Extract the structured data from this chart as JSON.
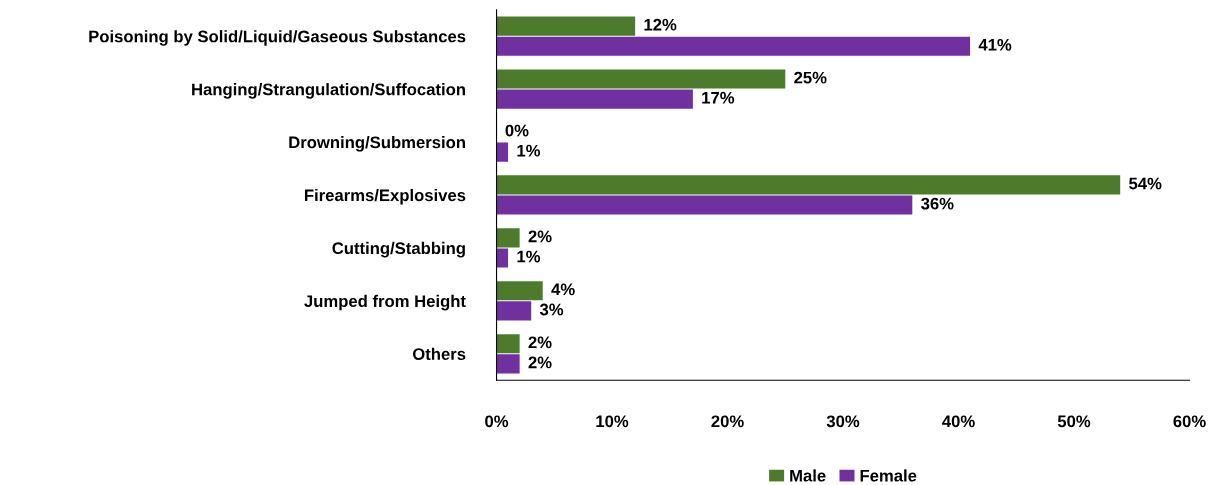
{
  "chart_data": {
    "type": "bar",
    "orientation": "horizontal",
    "categories": [
      "Poisoning by Solid/Liquid/Gaseous Substances",
      "Hanging/Strangulation/Suffocation",
      "Drowning/Submersion",
      "Firearms/Explosives",
      "Cutting/Stabbing",
      "Jumped from Height",
      "Others"
    ],
    "series": [
      {
        "name": "Male",
        "color": "#4e7a2c",
        "values": [
          12,
          25,
          0,
          54,
          2,
          4,
          2
        ],
        "value_labels": [
          "12%",
          "25%",
          "0%",
          "54%",
          "2%",
          "4%",
          "2%"
        ]
      },
      {
        "name": "Female",
        "color": "#7030a0",
        "values": [
          41,
          17,
          1,
          36,
          1,
          3,
          2
        ],
        "value_labels": [
          "41%",
          "17%",
          "1%",
          "36%",
          "1%",
          "3%",
          "2%"
        ]
      }
    ],
    "xlim": [
      0,
      60
    ],
    "xticks": [
      {
        "value": 0,
        "label": "0%"
      },
      {
        "value": 10,
        "label": "10%"
      },
      {
        "value": 20,
        "label": "20%"
      },
      {
        "value": 30,
        "label": "30%"
      },
      {
        "value": 40,
        "label": "40%"
      },
      {
        "value": 50,
        "label": "50%"
      },
      {
        "value": 60,
        "label": "60%"
      }
    ],
    "grid": false,
    "legend": "bottom"
  }
}
